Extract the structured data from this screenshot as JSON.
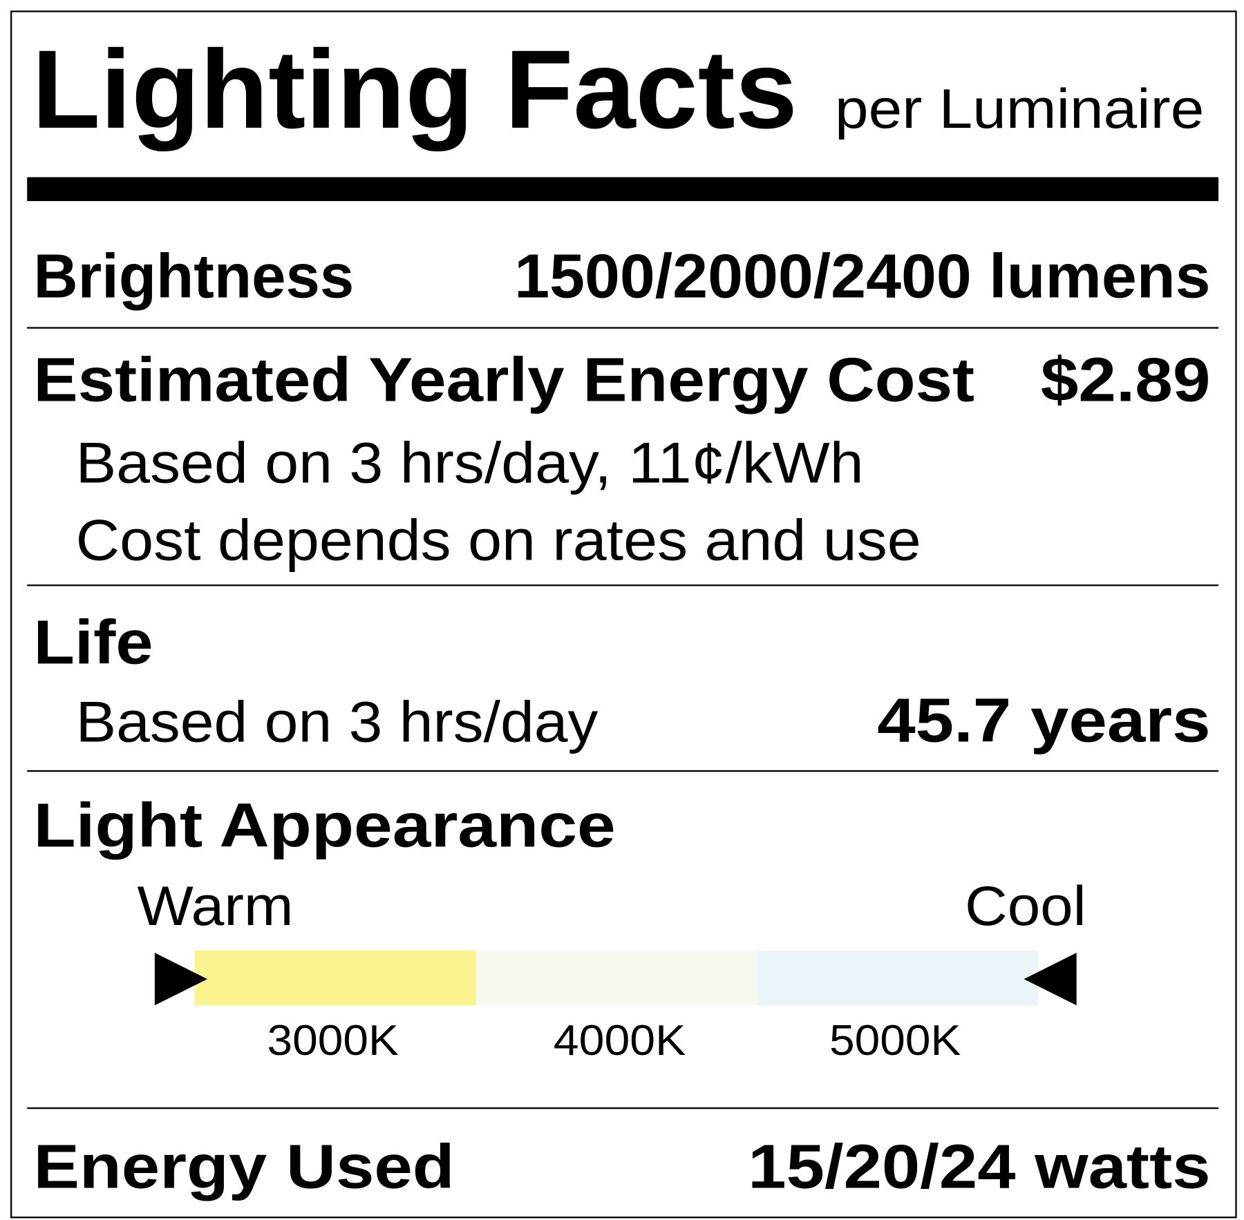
{
  "header": {
    "title": "Lighting Facts",
    "subtitle": "per Luminaire"
  },
  "brightness": {
    "label": "Brightness",
    "value": "1500/2000/2400 lumens"
  },
  "energy_cost": {
    "label": "Estimated Yearly Energy Cost",
    "value": "$2.89",
    "note1": "Based on 3 hrs/day, 11¢/kWh",
    "note2": "Cost depends on rates and use"
  },
  "life": {
    "label": "Life",
    "note": "Based on 3 hrs/day",
    "value": "45.7 years"
  },
  "light_appearance": {
    "label": "Light Appearance",
    "warm_label": "Warm",
    "cool_label": "Cool",
    "scale": [
      {
        "label": "3000K",
        "color": "#FAF38E"
      },
      {
        "label": "4000K",
        "color": "#F6F9EE"
      },
      {
        "label": "5000K",
        "color": "#EAF5FA"
      }
    ]
  },
  "energy_used": {
    "label": "Energy Used",
    "value": "15/20/24 watts"
  }
}
